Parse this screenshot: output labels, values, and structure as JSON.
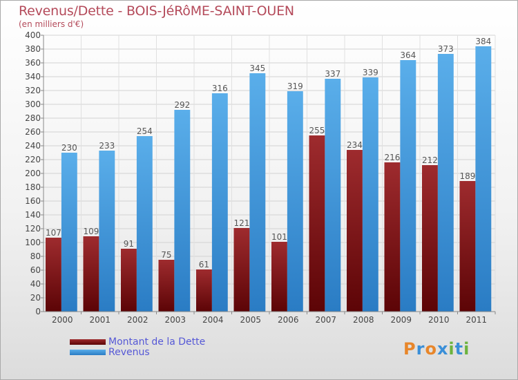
{
  "title": "Revenus/Dette - BOIS-JéRôME-SAINT-OUEN",
  "subtitle": "(en milliers d'€)",
  "logo": {
    "letters": [
      "P",
      "r",
      "o",
      "x",
      "i",
      "t",
      "i"
    ],
    "colors": [
      "#e8862a",
      "#3a8fd8",
      "#e8862a",
      "#3a8fd8",
      "#6cb33e",
      "#3a8fd8",
      "#6cb33e"
    ]
  },
  "chart_data": {
    "type": "bar",
    "categories": [
      "2000",
      "2001",
      "2002",
      "2003",
      "2004",
      "2005",
      "2006",
      "2007",
      "2008",
      "2009",
      "2010",
      "2011"
    ],
    "series": [
      {
        "name": "Montant de la Dette",
        "color": "#7a0e10",
        "values": [
          107,
          109,
          91,
          75,
          61,
          121,
          101,
          255,
          234,
          216,
          212,
          189
        ]
      },
      {
        "name": "Revenus",
        "color": "#4fa3e3",
        "values": [
          230,
          233,
          254,
          292,
          316,
          345,
          319,
          337,
          339,
          364,
          373,
          384
        ]
      }
    ],
    "ylim": [
      0,
      400
    ],
    "ytick_step": 20,
    "grid": true,
    "legend": "bottom-left"
  }
}
